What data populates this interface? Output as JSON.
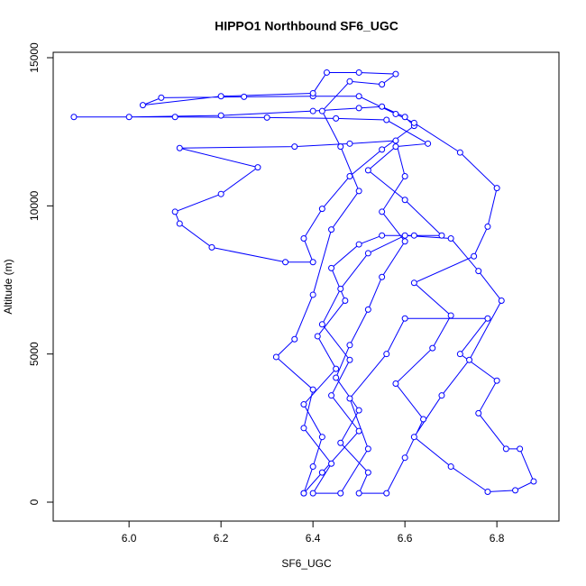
{
  "chart_data": {
    "type": "line",
    "title": "HIPPO1 Northbound SF6_UGC",
    "x_label": "SF6_UGC",
    "y_label": "Altitude (m)",
    "color": "#0000ff",
    "markers": true,
    "grid": false,
    "xlim": [
      5.835,
      6.935
    ],
    "ylim": [
      -639,
      15183
    ],
    "xticks": [
      {
        "value": 6,
        "label": "6.0"
      },
      6.2,
      6.4,
      6.6,
      6.8
    ],
    "yticks": [
      0,
      5000,
      10000,
      15000
    ],
    "x": [
      6.38,
      6.4,
      6.42,
      6.38,
      6.45,
      6.41,
      6.47,
      6.44,
      6.5,
      6.55,
      6.62,
      6.68,
      6.6,
      6.52,
      6.58,
      6.65,
      6.56,
      6.45,
      6.3,
      6.1,
      5.88,
      6.0,
      6.2,
      6.4,
      6.5,
      6.55,
      6.6,
      6.62,
      6.55,
      6.48,
      6.42,
      6.38,
      6.4,
      6.34,
      6.18,
      6.11,
      6.1,
      6.2,
      6.28,
      6.11,
      6.36,
      6.48,
      6.58,
      6.6,
      6.55,
      6.6,
      6.55,
      6.52,
      6.48,
      6.45,
      6.5,
      6.46,
      6.52,
      6.5,
      6.56,
      6.6,
      6.64,
      6.58,
      6.66,
      6.7,
      6.62,
      6.75,
      6.78,
      6.8,
      6.72,
      6.62,
      6.58,
      6.5,
      6.4,
      6.25,
      6.07,
      6.03,
      6.2,
      6.4,
      6.43,
      6.5,
      6.58,
      6.55,
      6.48,
      6.42,
      6.46,
      6.5,
      6.44,
      6.4,
      6.36,
      6.32,
      6.4,
      6.38,
      6.44,
      6.4,
      6.46,
      6.52,
      6.48,
      6.56,
      6.6,
      6.78,
      6.72,
      6.8,
      6.76,
      6.82,
      6.85,
      6.88,
      6.84,
      6.78,
      6.7,
      6.62,
      6.68,
      6.74,
      6.81,
      6.76,
      6.7,
      6.6,
      6.52,
      6.46,
      6.42,
      6.48,
      6.44,
      6.5,
      6.42,
      6.38
    ],
    "series": [
      {
        "name": "SF6_UGC",
        "color": "#0000ff",
        "values": [
          300,
          1200,
          2200,
          3300,
          4500,
          5600,
          6800,
          7900,
          8700,
          9000,
          9000,
          9000,
          10200,
          11200,
          12000,
          12100,
          12900,
          12950,
          12980,
          13000,
          13000,
          13000,
          13050,
          13200,
          13300,
          13350,
          13000,
          12700,
          11900,
          11000,
          9900,
          8900,
          8100,
          8100,
          8600,
          9400,
          9800,
          10400,
          11300,
          11950,
          12000,
          12100,
          12200,
          11000,
          9800,
          8800,
          7600,
          6500,
          5300,
          4200,
          3100,
          2000,
          1000,
          300,
          300,
          1500,
          2800,
          4000,
          5200,
          6300,
          7400,
          8300,
          9300,
          10600,
          11800,
          12800,
          13100,
          13700,
          13700,
          13680,
          13650,
          13400,
          13700,
          13800,
          14500,
          14500,
          14450,
          14100,
          14200,
          13200,
          12000,
          10500,
          9200,
          7000,
          5500,
          4900,
          3800,
          2500,
          1300,
          300,
          300,
          1800,
          3500,
          5000,
          6200,
          6200,
          5000,
          4100,
          3000,
          1800,
          1800,
          700,
          400,
          350,
          1200,
          2200,
          3600,
          4800,
          6800,
          7800,
          8900,
          9000,
          8400,
          7200,
          6000,
          4800,
          3600,
          2400,
          1000,
          300
        ]
      }
    ]
  }
}
